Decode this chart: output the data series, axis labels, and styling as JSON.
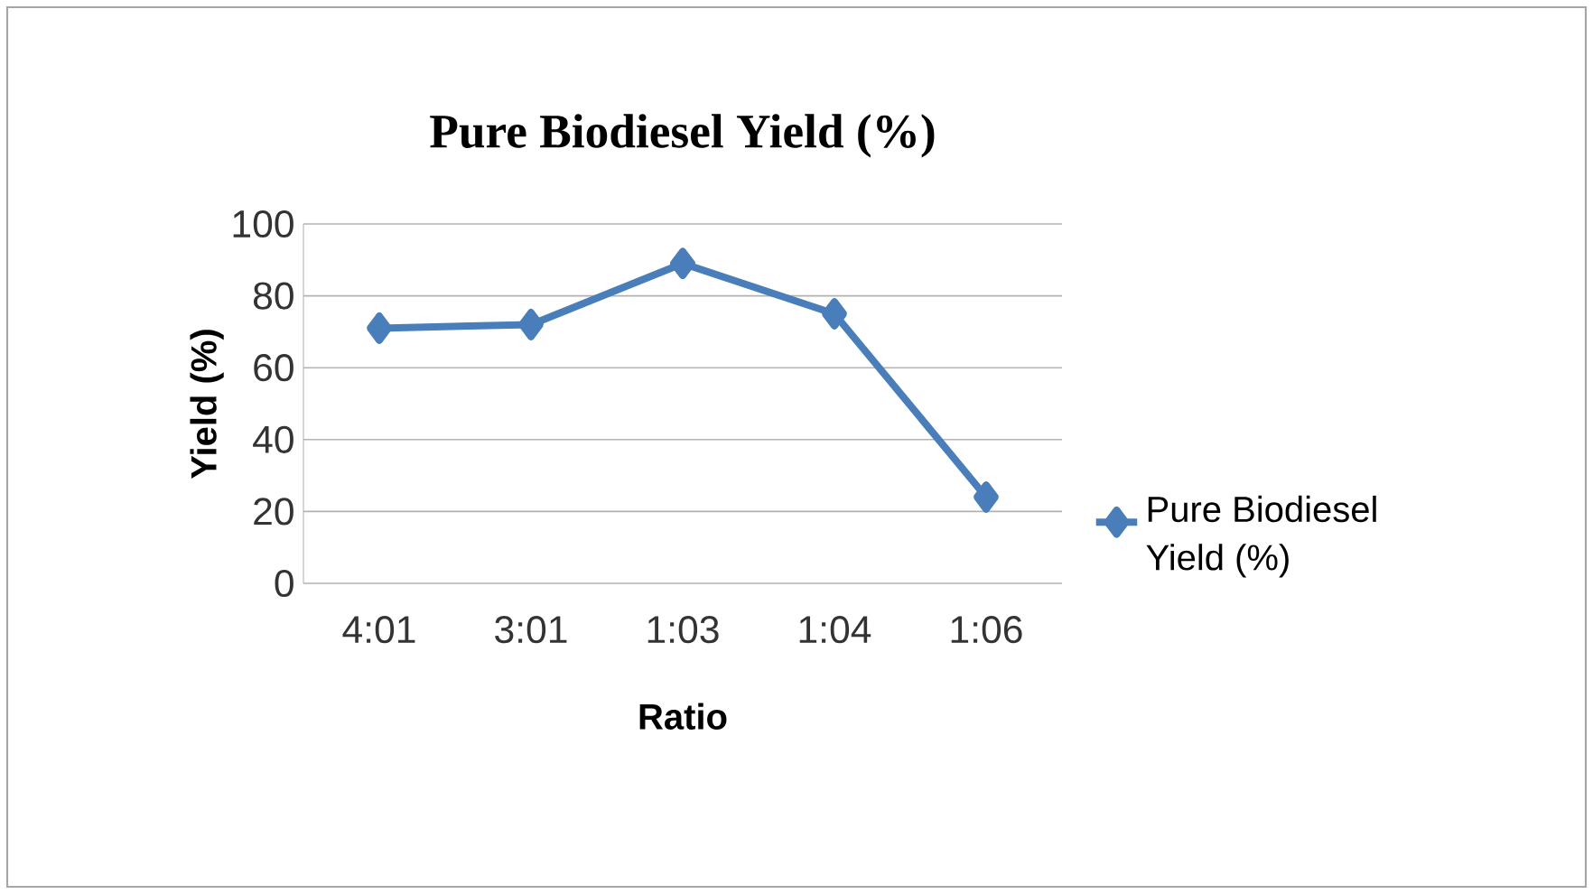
{
  "chart_data": {
    "type": "line",
    "title": "Pure Biodiesel Yield (%)",
    "xlabel": "Ratio",
    "ylabel": "Yield (%)",
    "categories": [
      "4:01",
      "3:01",
      "1:03",
      "1:04",
      "1:06"
    ],
    "series": [
      {
        "name": "Pure Biodiesel Yield (%)",
        "color": "#4a7ebb",
        "values": [
          71,
          72,
          89,
          75,
          24
        ]
      }
    ],
    "ylim": [
      0,
      100
    ],
    "yticks": [
      0,
      20,
      40,
      60,
      80,
      100
    ],
    "grid": "y",
    "legend": "right",
    "marker": "diamond",
    "line_style": "solid"
  }
}
